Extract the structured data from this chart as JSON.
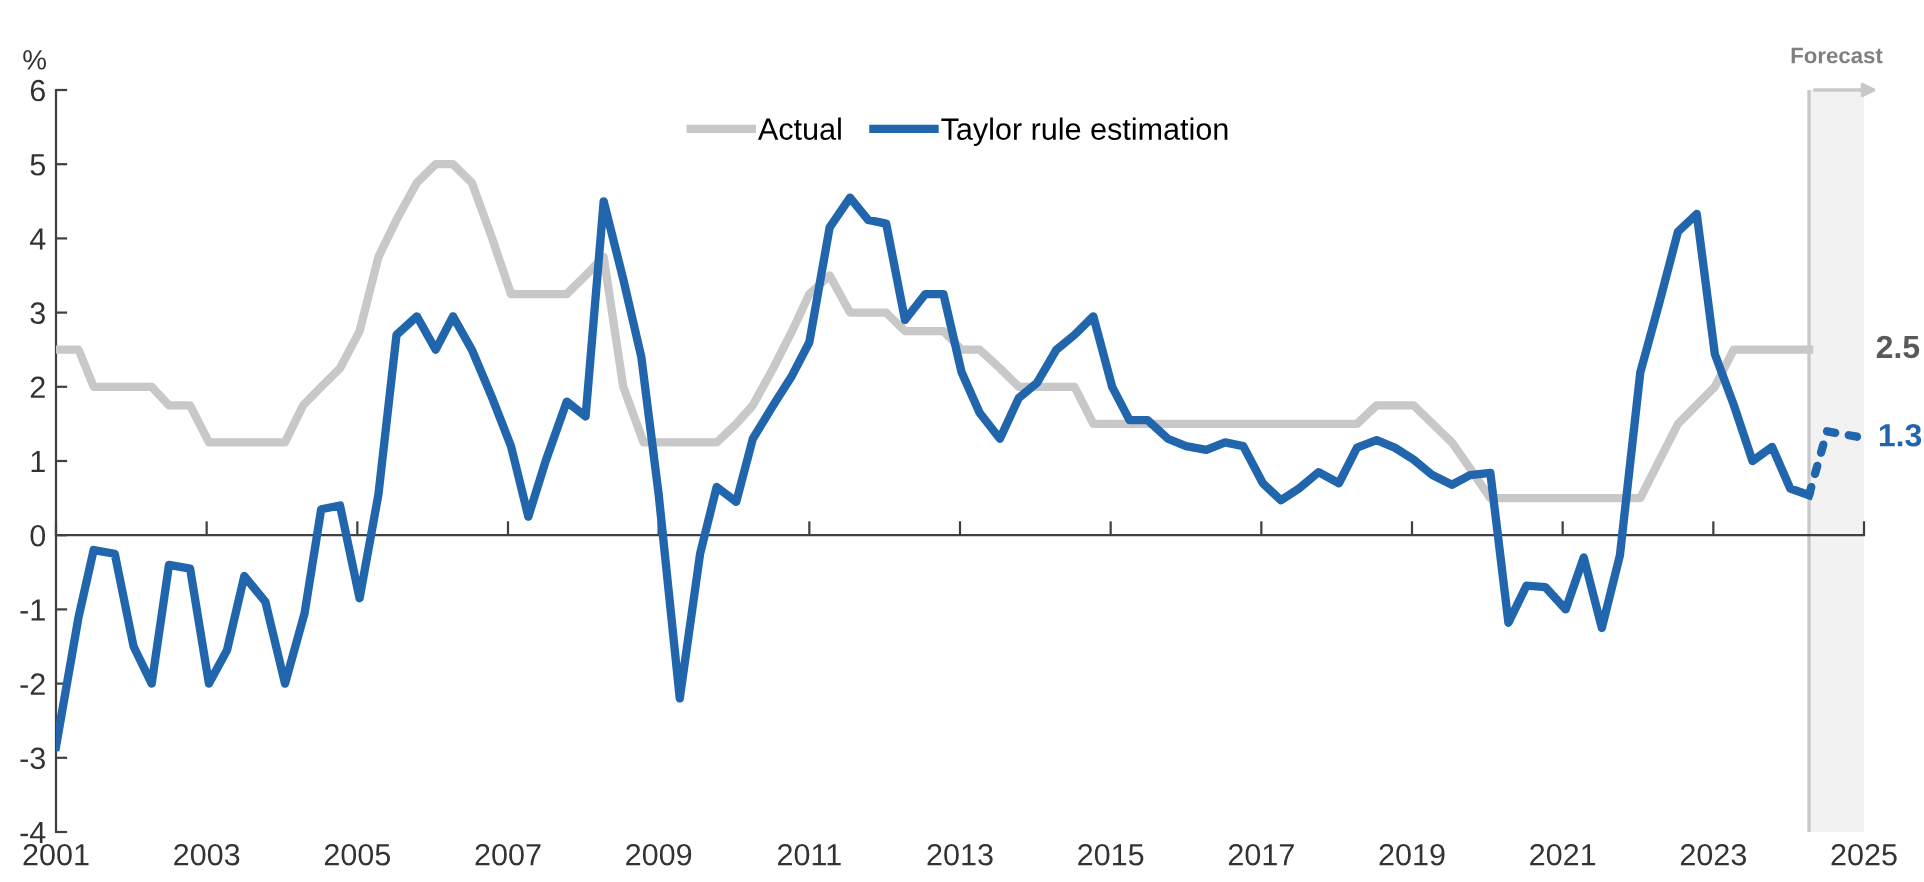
{
  "chart_data": {
    "type": "line",
    "ylabel": "%",
    "xlim": [
      2001,
      2025
    ],
    "xticks": [
      2001,
      2003,
      2005,
      2007,
      2009,
      2011,
      2013,
      2015,
      2017,
      2019,
      2021,
      2023,
      2025
    ],
    "ylim": [
      -4,
      6
    ],
    "yticks": [
      -4,
      -3,
      -2,
      -1,
      0,
      1,
      2,
      3,
      4,
      5,
      6
    ],
    "legend": "top",
    "marker": "none",
    "series": [
      {
        "name": "Actual",
        "color": "#c8c8c8",
        "line_style": "solid",
        "x": [
          2001.0,
          2001.3,
          2001.5,
          2002.27,
          2002.5,
          2002.78,
          2003.03,
          2004.04,
          2004.28,
          2004.52,
          2004.77,
          2005.03,
          2005.28,
          2005.52,
          2005.79,
          2006.04,
          2006.27,
          2006.52,
          2006.79,
          2007.04,
          2007.78,
          2008.03,
          2008.27,
          2008.53,
          2008.8,
          2009.77,
          2010.03,
          2010.25,
          2010.52,
          2010.77,
          2011.0,
          2011.27,
          2011.54,
          2012.02,
          2012.27,
          2012.78,
          2013.02,
          2013.26,
          2013.53,
          2013.78,
          2014.52,
          2014.77,
          2018.27,
          2018.53,
          2019.02,
          2019.53,
          2019.77,
          2020.04,
          2022.03,
          2022.53,
          2023.02,
          2023.27,
          2024.27
        ],
        "values": [
          2.5,
          2.5,
          2.0,
          2.0,
          1.75,
          1.75,
          1.25,
          1.25,
          1.75,
          2.0,
          2.25,
          2.75,
          3.75,
          4.25,
          4.75,
          5.0,
          5.0,
          4.75,
          4.0,
          3.25,
          3.25,
          3.5,
          3.75,
          2.0,
          1.25,
          1.25,
          1.5,
          1.75,
          2.25,
          2.75,
          3.25,
          3.5,
          3.0,
          3.0,
          2.75,
          2.75,
          2.5,
          2.5,
          2.25,
          2.0,
          2.0,
          1.5,
          1.5,
          1.75,
          1.75,
          1.25,
          0.9,
          0.5,
          0.5,
          1.5,
          2.0,
          2.5,
          2.5
        ]
      },
      {
        "name": "Taylor rule estimation",
        "color": "#2166ac",
        "line_style": "solid",
        "x": [
          2001.0,
          2001.3,
          2001.5,
          2001.78,
          2002.03,
          2002.27,
          2002.5,
          2002.78,
          2003.03,
          2003.27,
          2003.5,
          2003.78,
          2004.04,
          2004.3,
          2004.52,
          2004.77,
          2005.03,
          2005.28,
          2005.52,
          2005.79,
          2006.04,
          2006.27,
          2006.52,
          2006.79,
          2007.04,
          2007.27,
          2007.5,
          2007.78,
          2008.03,
          2008.27,
          2008.53,
          2008.77,
          2009.0,
          2009.28,
          2009.55,
          2009.77,
          2010.03,
          2010.25,
          2010.52,
          2010.77,
          2011.0,
          2011.27,
          2011.54,
          2011.78,
          2012.02,
          2012.27,
          2012.54,
          2012.78,
          2013.02,
          2013.26,
          2013.53,
          2013.78,
          2014.02,
          2014.28,
          2014.52,
          2014.77,
          2015.02,
          2015.25,
          2015.49,
          2015.76,
          2016.0,
          2016.27,
          2016.52,
          2016.76,
          2017.02,
          2017.26,
          2017.5,
          2017.76,
          2018.03,
          2018.27,
          2018.53,
          2018.77,
          2019.02,
          2019.27,
          2019.53,
          2019.77,
          2020.04,
          2020.28,
          2020.52,
          2020.77,
          2021.04,
          2021.28,
          2021.52,
          2021.76,
          2022.03,
          2022.28,
          2022.53,
          2022.78,
          2023.02,
          2023.27,
          2023.52,
          2023.78,
          2024.02,
          2024.27
        ],
        "values": [
          -2.85,
          -1.1,
          -0.2,
          -0.25,
          -1.5,
          -2.0,
          -0.4,
          -0.45,
          -2.0,
          -1.55,
          -0.55,
          -0.9,
          -2.0,
          -1.05,
          0.35,
          0.4,
          -0.85,
          0.55,
          2.7,
          2.95,
          2.5,
          2.95,
          2.5,
          1.85,
          1.2,
          0.25,
          1.0,
          1.8,
          1.6,
          4.5,
          3.45,
          2.4,
          0.55,
          -2.2,
          -0.25,
          0.65,
          0.45,
          1.3,
          1.75,
          2.15,
          2.6,
          4.15,
          4.55,
          4.25,
          4.2,
          2.9,
          3.25,
          3.25,
          2.2,
          1.65,
          1.3,
          1.85,
          2.05,
          2.5,
          2.7,
          2.95,
          2.0,
          1.55,
          1.55,
          1.3,
          1.2,
          1.15,
          1.25,
          1.2,
          0.7,
          0.47,
          0.63,
          0.85,
          0.7,
          1.18,
          1.28,
          1.18,
          1.02,
          0.81,
          0.68,
          0.81,
          0.84,
          -1.18,
          -0.68,
          -0.7,
          -1.0,
          -0.3,
          -1.25,
          -0.27,
          2.19,
          3.12,
          4.09,
          4.33,
          2.44,
          1.76,
          1.0,
          1.19,
          0.63,
          0.54
        ]
      },
      {
        "color": "#2166ac",
        "line_style": "dotted",
        "x": [
          2024.27,
          2024.51,
          2025.0
        ],
        "values": [
          0.54,
          1.4,
          1.31
        ]
      }
    ],
    "ref_lines": [
      {
        "axis": "x",
        "value": 2024.27,
        "color": "#c8c8c8"
      }
    ],
    "bands": [
      {
        "axis": "x",
        "from": 2024.27,
        "to": 2025,
        "label": "Forecast",
        "color": "#f2f2f2"
      }
    ],
    "annotations": [
      {
        "text": "2.5",
        "x": 2024.27,
        "y": 2.5
      },
      {
        "text": "1.3",
        "x": 2025.0,
        "y": 1.31
      }
    ]
  }
}
